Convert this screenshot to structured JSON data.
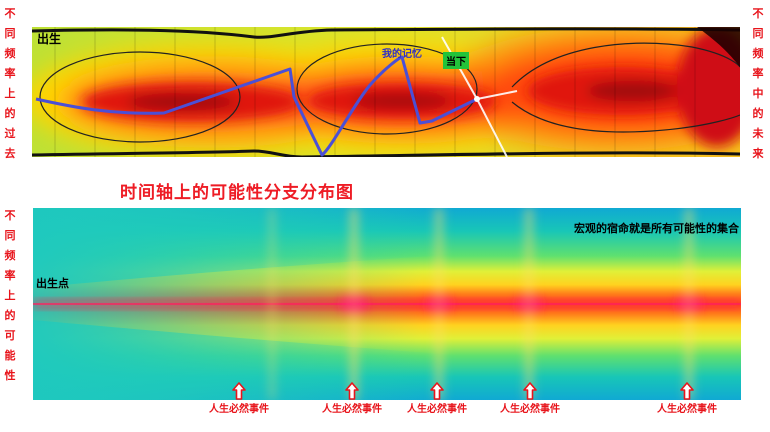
{
  "left_label_top": "不同频率上的过去",
  "right_label_top": "不同频率中的未来",
  "left_label_bottom": "不同频率上的可能性",
  "top_diagram": {
    "birth_label": "出生",
    "memory_label": "我的记忆",
    "now_label": "当下"
  },
  "title": "时间轴上的可能性分支分布图",
  "bottom_diagram": {
    "caption": "宏观的宿命就是所有可能性的集合",
    "birth_point_label": "出生点"
  },
  "events": [
    {
      "label": "人生必然事件"
    },
    {
      "label": "人生必然事件"
    },
    {
      "label": "人生必然事件"
    },
    {
      "label": "人生必然事件"
    },
    {
      "label": "人生必然事件"
    }
  ],
  "colors": {
    "label_red": "#e8141b",
    "curve_blue": "#4b4fd6",
    "now_green": "#22c33a"
  }
}
